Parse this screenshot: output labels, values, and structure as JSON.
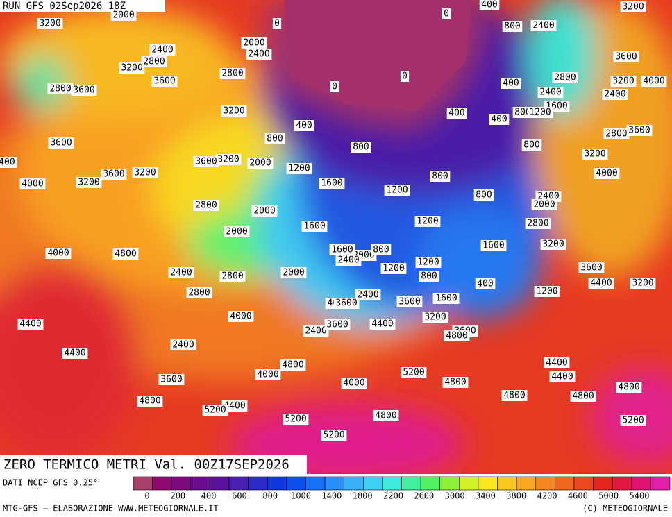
{
  "header": {
    "run": "RUN GFS 02Sep2026 18Z"
  },
  "title": "ZERO TERMICO METRI Val. 00Z17SEP2026",
  "legend": {
    "source": "DATI NCEP GFS 0.25°",
    "colors": [
      "#a8406c",
      "#8c0a6c",
      "#7a0a7c",
      "#6a0c8e",
      "#5a129e",
      "#4820b0",
      "#2e2ac6",
      "#1038dc",
      "#0a50ec",
      "#1870f4",
      "#2890f8",
      "#38b0f8",
      "#40d0f4",
      "#40ecdc",
      "#40f0a0",
      "#50f060",
      "#90f038",
      "#d0f028",
      "#f8e820",
      "#f8c820",
      "#f8a820",
      "#f48820",
      "#f06820",
      "#ea4820",
      "#e42820",
      "#e01840",
      "#e01470",
      "#e020a8"
    ],
    "ticks": [
      "0",
      "200",
      "400",
      "600",
      "800",
      "1000",
      "1400",
      "1800",
      "2200",
      "2600",
      "3000",
      "3400",
      "3800",
      "4200",
      "4600",
      "5000",
      "5400"
    ]
  },
  "footer": {
    "left": "MTG-GFS — ELABORAZIONE WWW.METEOGIORNALE.IT",
    "right": "(C) METEOGIORNALE"
  },
  "contour_labels": [
    "2000",
    "3200",
    "400",
    "3200",
    "0",
    "0",
    "800",
    "2400",
    "2000",
    "2400",
    "2400",
    "3200",
    "2800",
    "2800",
    "3600",
    "0",
    "0",
    "3200",
    "3600",
    "3600",
    "2400",
    "4000",
    "400",
    "2800",
    "2800",
    "2400",
    "3200",
    "1600",
    "400",
    "800",
    "1200",
    "3200",
    "2800",
    "400",
    "400",
    "800",
    "800",
    "3600",
    "800",
    "3600",
    "4000",
    "3200",
    "3200",
    "2000",
    "1200",
    "3200",
    "3600",
    "4400",
    "4000",
    "3600",
    "1600",
    "800",
    "1200",
    "2400",
    "2800",
    "2000",
    "2000",
    "800",
    "2000",
    "2800",
    "1200",
    "1600",
    "1600",
    "3200",
    "2000",
    "1600",
    "2400",
    "800",
    "1200",
    "800",
    "1200",
    "2400",
    "3600",
    "2800",
    "4000",
    "4400",
    "4800",
    "2800",
    "2000",
    "3600",
    "4400",
    "3200",
    "2400",
    "2800",
    "2400",
    "3600",
    "1200",
    "400",
    "1600",
    "3200",
    "3600",
    "2400",
    "3600",
    "4000",
    "4800",
    "4800",
    "4000",
    "3600",
    "4000",
    "4400",
    "4400",
    "4400",
    "5200",
    "4000",
    "4800",
    "4400",
    "4800",
    "4400",
    "4800",
    "5200",
    "4800",
    "5200",
    "4800",
    "4800",
    "5200",
    "5200"
  ]
}
